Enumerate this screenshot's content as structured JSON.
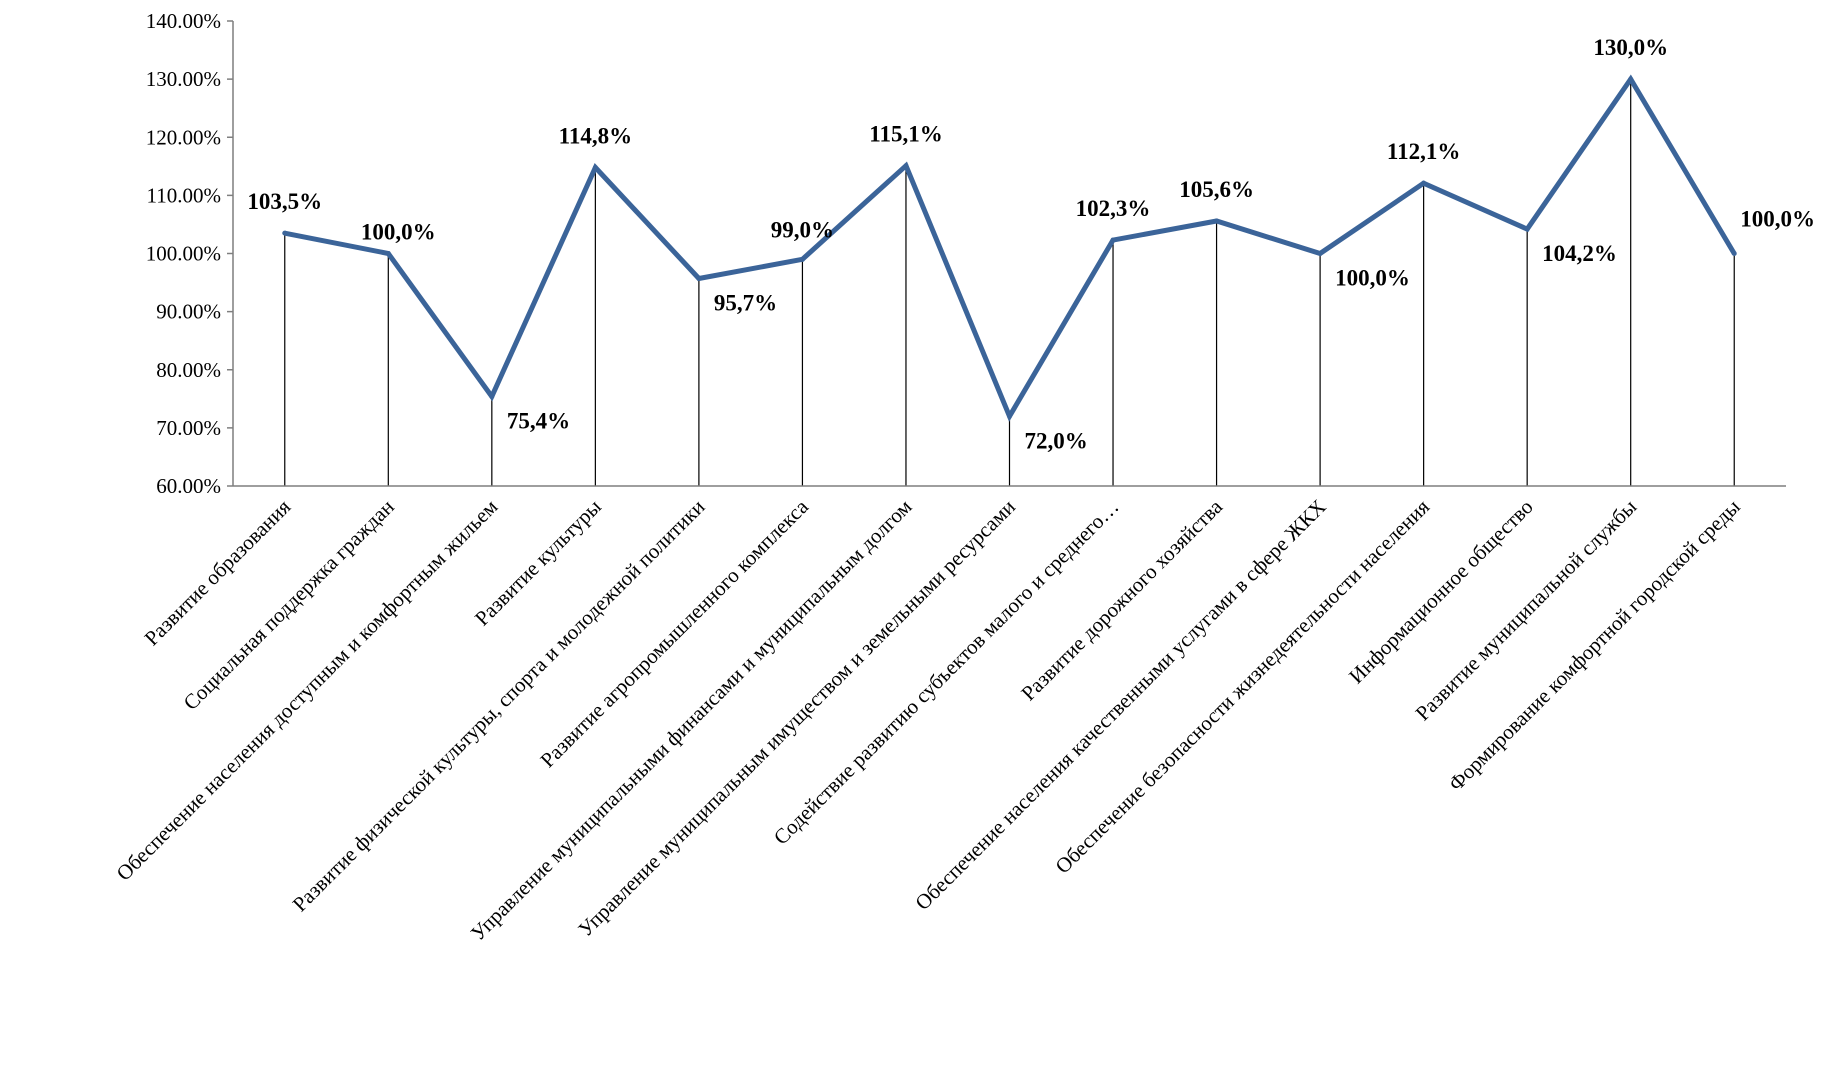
{
  "chart_data": {
    "type": "line",
    "title": "",
    "xlabel": "",
    "ylabel": "",
    "ylim": [
      60,
      140
    ],
    "y_ticks": [
      "60.00%",
      "70.00%",
      "80.00%",
      "90.00%",
      "100.00%",
      "110.00%",
      "120.00%",
      "130.00%",
      "140.00%"
    ],
    "categories": [
      "Развитие образования",
      "Социальная поддержка граждан",
      "Обеспечение населения доступным и комфортным жильем",
      "Развитие культуры",
      "Развитие физической культуры, спорта и молодежной политики",
      "Развитие агропромышленного комплекса",
      "Управление муниципальными финансами и муниципальным долгом",
      "Управление муниципальным имуществом и земельными ресурсами",
      "Содействие развитию субъектов малого и среднего…",
      "Развитие дорожного хозяйства",
      "Обеспечение населения качественными услугами в сфере ЖКХ",
      "Обеспечение безопасности жизнедеятельности населения",
      "Информационное общество",
      "Развитие муниципальной службы",
      "Формирование комфортной городской среды"
    ],
    "series": [
      {
        "values": [
          103.5,
          100.0,
          75.4,
          114.8,
          95.7,
          99.0,
          115.1,
          72.0,
          102.3,
          105.6,
          100.0,
          112.1,
          104.2,
          130.0,
          100.0
        ],
        "labels": [
          "103,5%",
          "100,0%",
          "75,4%",
          "114,8%",
          "95,7%",
          "99,0%",
          "115,1%",
          "72,0%",
          "102,3%",
          "105,6%",
          "100,0%",
          "112,1%",
          "104,2%",
          "130,0%",
          "100,0%"
        ]
      }
    ],
    "drop_lines": true,
    "grid": false,
    "legend": "none",
    "colors": {
      "line": "#3b6499",
      "drop_lines": "#000000",
      "axis": "#7f7f7f"
    }
  }
}
